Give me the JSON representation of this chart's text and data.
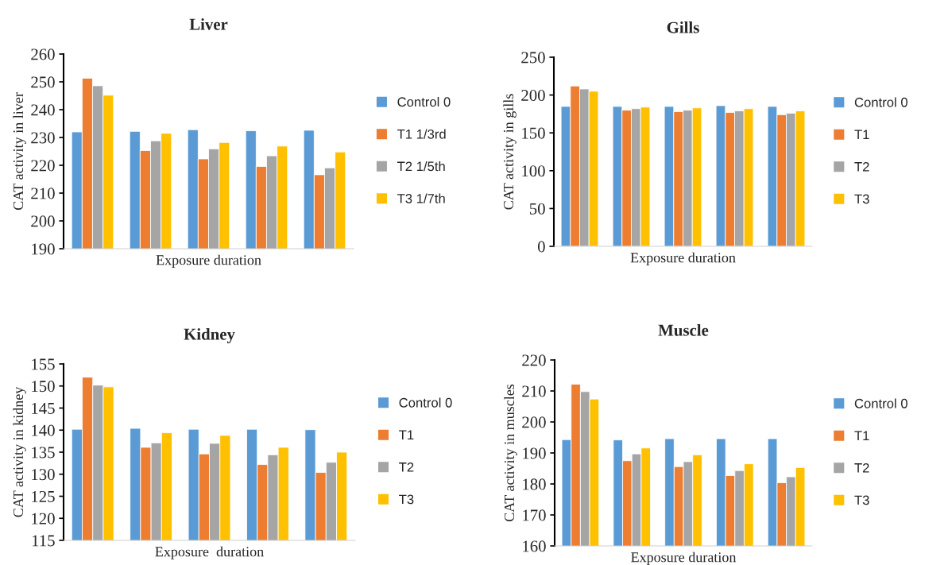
{
  "chart_data": [
    {
      "type": "bar",
      "title": "Liver",
      "xlabel": "Exposure duration",
      "ylabel": "CAT activity in liver",
      "categories": [
        null,
        null,
        null,
        null,
        null
      ],
      "ylim": [
        190,
        260
      ],
      "yticks": [
        190,
        200,
        210,
        220,
        230,
        240,
        250,
        260
      ],
      "grid": false,
      "legend": "right",
      "series": [
        {
          "name": "Control 0",
          "color": "#5b9bd5",
          "values": [
            232.0,
            232.2,
            232.8,
            232.4,
            232.6
          ]
        },
        {
          "name": "T1 1/3rd",
          "color": "#ed7d31",
          "values": [
            251.3,
            225.3,
            222.3,
            219.6,
            216.6
          ]
        },
        {
          "name": "T2 1/5th",
          "color": "#a5a5a5",
          "values": [
            248.6,
            228.8,
            225.9,
            223.4,
            219.1
          ]
        },
        {
          "name": "T3 1/7th",
          "color": "#ffc000",
          "values": [
            245.2,
            231.5,
            228.2,
            226.9,
            224.8
          ]
        }
      ]
    },
    {
      "type": "bar",
      "title": "Gills",
      "xlabel": "Exposure duration",
      "ylabel": "CAT activity in gills",
      "categories": [
        null,
        null,
        null,
        null,
        null
      ],
      "ylim": [
        0,
        250
      ],
      "yticks": [
        0,
        50,
        100,
        150,
        200,
        250
      ],
      "grid": false,
      "legend": "right",
      "series": [
        {
          "name": "Control 0",
          "color": "#5b9bd5",
          "values": [
            185,
            185,
            185,
            186,
            185
          ]
        },
        {
          "name": "T1",
          "color": "#ed7d31",
          "values": [
            212,
            180,
            178,
            177,
            174
          ]
        },
        {
          "name": "T2",
          "color": "#a5a5a5",
          "values": [
            208,
            182,
            180,
            179,
            176
          ]
        },
        {
          "name": "T3",
          "color": "#ffc000",
          "values": [
            205,
            184,
            183,
            182,
            179
          ]
        }
      ]
    },
    {
      "type": "bar",
      "title": "Kidney",
      "xlabel": "Exposure  duration",
      "ylabel": "CAT activity in kidney",
      "categories": [
        null,
        null,
        null,
        null,
        null
      ],
      "ylim": [
        115,
        155
      ],
      "yticks": [
        115,
        120,
        125,
        130,
        135,
        140,
        145,
        150,
        155
      ],
      "grid": false,
      "legend": "right",
      "series": [
        {
          "name": "Control 0",
          "color": "#5b9bd5",
          "values": [
            140.2,
            140.4,
            140.2,
            140.2,
            140.1
          ]
        },
        {
          "name": "T1",
          "color": "#ed7d31",
          "values": [
            152.0,
            136.1,
            134.6,
            132.2,
            130.4
          ]
        },
        {
          "name": "T2",
          "color": "#a5a5a5",
          "values": [
            150.2,
            137.1,
            137.0,
            134.4,
            132.7
          ]
        },
        {
          "name": "T3",
          "color": "#ffc000",
          "values": [
            149.8,
            139.4,
            138.8,
            136.1,
            135.0
          ]
        }
      ]
    },
    {
      "type": "bar",
      "title": "Muscle",
      "xlabel": "Exposure duration",
      "ylabel": "CAT activity in muscles",
      "categories": [
        null,
        null,
        null,
        null,
        null
      ],
      "ylim": [
        160,
        220
      ],
      "yticks": [
        160,
        170,
        180,
        190,
        200,
        210,
        220
      ],
      "grid": false,
      "legend": "right",
      "series": [
        {
          "name": "Control 0",
          "color": "#5b9bd5",
          "values": [
            194.3,
            194.2,
            194.6,
            194.6,
            194.6
          ]
        },
        {
          "name": "T1",
          "color": "#ed7d31",
          "values": [
            212.2,
            187.5,
            185.6,
            182.7,
            180.4
          ]
        },
        {
          "name": "T2",
          "color": "#a5a5a5",
          "values": [
            209.8,
            189.7,
            187.2,
            184.3,
            182.3
          ]
        },
        {
          "name": "T3",
          "color": "#ffc000",
          "values": [
            207.4,
            191.6,
            189.4,
            186.5,
            185.3
          ]
        }
      ]
    }
  ]
}
